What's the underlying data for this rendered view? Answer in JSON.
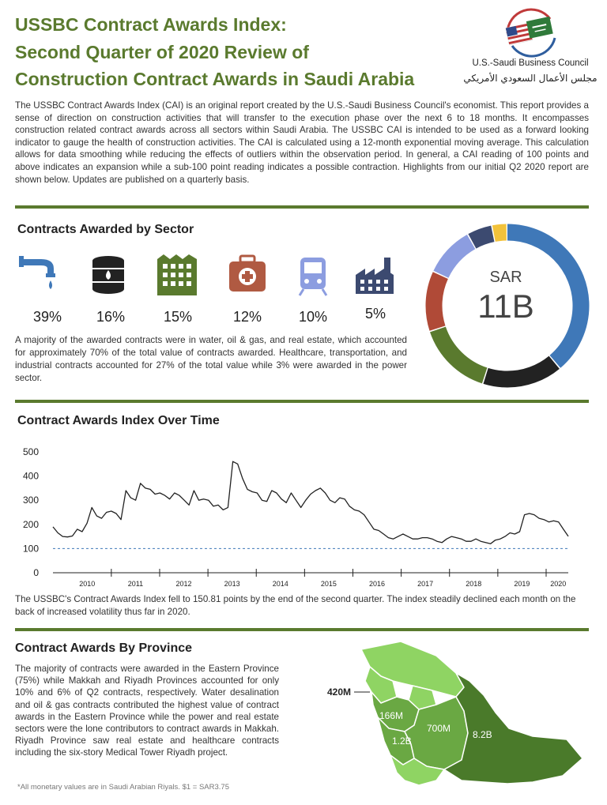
{
  "header": {
    "title_line1": "USSBC Contract Awards Index:",
    "title_line2": "Second Quarter of 2020 Review of",
    "title_line3": "Construction Contract Awards in Saudi Arabia",
    "logo_name_en": "U.S.-Saudi Business Council",
    "logo_name_ar": "مجلس الأعمال السعودي الأمريكي"
  },
  "intro": "The USSBC Contract Awards Index (CAI) is an original report created by the U.S.-Saudi Business Council's economist. This report provides a sense of direction on construction activities that will transfer to the execution phase over the next 6 to 18 months. It encompasses construction related contract awards across all sectors within Saudi Arabia. The USSBC CAI is intended to be used as a forward looking indicator to gauge the health of construction activities. The CAI is calculated using a 12-month exponential moving average. This calculation allows for data smoothing while reducing the effects of outliers within the observation period. In general, a CAI reading of 100 points and above indicates an expansion while a sub-100 point reading indicates a possible contraction. Highlights from our initial Q2 2020 report are shown below. Updates are published on a quarterly basis.",
  "sector": {
    "heading": "Contracts Awarded by Sector",
    "items": [
      {
        "icon": "water-pipe-icon",
        "pct": "39%"
      },
      {
        "icon": "oil-barrel-icon",
        "pct": "16%"
      },
      {
        "icon": "building-icon",
        "pct": "15%"
      },
      {
        "icon": "medical-kit-icon",
        "pct": "12%"
      },
      {
        "icon": "train-icon",
        "pct": "10%"
      },
      {
        "icon": "factory-icon",
        "pct": "5%"
      }
    ],
    "text": "A majority of the awarded contracts were in water, oil & gas, and real estate, which accounted for approximately 70% of the total value of contracts awarded. Healthcare, transportation, and industrial contracts accounted for 27% of the total value while 3% were awarded in the power sector.",
    "donut_label": "SAR",
    "donut_value": "11B"
  },
  "colors": {
    "green": "#5a7a2e",
    "blue": "#3f78b8",
    "black": "#222222",
    "red": "#b04a37",
    "lavender": "#8c9de0",
    "navy": "#3c4a70",
    "yellow": "#f2c23b",
    "medical": "#b05a42",
    "map_light": "#8fd463",
    "map_mid": "#6aa843",
    "map_dark": "#4a7a2a"
  },
  "donut_data": {
    "type": "pie",
    "slices": [
      {
        "value": 39,
        "color": "#3f78b8"
      },
      {
        "value": 16,
        "color": "#222222"
      },
      {
        "value": 15,
        "color": "#5a7a2e"
      },
      {
        "value": 12,
        "color": "#b04a37"
      },
      {
        "value": 10,
        "color": "#8c9de0"
      },
      {
        "value": 5,
        "color": "#3c4a70"
      },
      {
        "value": 3,
        "color": "#f2c23b"
      }
    ]
  },
  "index": {
    "heading": "Contract Awards Index Over Time",
    "text": "The USSBC's Contract Awards Index fell to 150.81 points by the end of the second quarter. The index steadily declined each month on the back of increased volatility thus far in 2020."
  },
  "chart_data": {
    "type": "line",
    "title": "",
    "xlabel": "",
    "ylabel": "",
    "ylim": [
      0,
      500
    ],
    "yticks": [
      "0",
      "100",
      "200",
      "300",
      "400",
      "500"
    ],
    "xticks": [
      "2010",
      "2011",
      "2012",
      "2013",
      "2014",
      "2015",
      "2016",
      "2017",
      "2018",
      "2019",
      "2020"
    ],
    "reference_line": 100,
    "grid": false,
    "x_start": "2009-10",
    "x_end": "2020-06",
    "series": [
      {
        "name": "",
        "values": [
          190,
          165,
          150,
          148,
          152,
          180,
          170,
          205,
          270,
          235,
          225,
          250,
          255,
          245,
          220,
          340,
          310,
          300,
          370,
          350,
          345,
          325,
          330,
          320,
          305,
          330,
          320,
          300,
          280,
          340,
          300,
          305,
          300,
          275,
          280,
          260,
          270,
          460,
          450,
          390,
          345,
          335,
          330,
          300,
          295,
          340,
          330,
          305,
          290,
          330,
          300,
          270,
          300,
          325,
          340,
          350,
          330,
          300,
          290,
          310,
          305,
          275,
          260,
          255,
          240,
          210,
          180,
          175,
          160,
          145,
          140,
          150,
          160,
          150,
          140,
          140,
          145,
          145,
          140,
          130,
          125,
          140,
          150,
          145,
          140,
          130,
          130,
          140,
          130,
          125,
          120,
          135,
          140,
          150,
          165,
          160,
          170,
          240,
          245,
          240,
          225,
          220,
          210,
          215,
          210,
          180,
          150.81
        ]
      }
    ]
  },
  "province": {
    "heading": "Contract Awards By Province",
    "text": "The majority of contracts were awarded in the Eastern Province (75%) while Makkah and Riyadh Provinces accounted for only 10% and 6% of Q2 contracts, respectively. Water desalination and oil & gas contracts contributed the highest value of contract awards in the Eastern Province while the power and real estate sectors were the lone contributors to contract awards in Makkah. Riyadh Province saw real estate and healthcare contracts including the six-story Medical Tower Riyadh project.",
    "labels": {
      "northwest": "420M",
      "madinah": "166M",
      "makkah": "1.2B",
      "riyadh": "700M",
      "eastern": "8.2B"
    },
    "footnote": "*All monetary  values are in Saudi Arabian Riyals.  $1 = SAR3.75"
  }
}
